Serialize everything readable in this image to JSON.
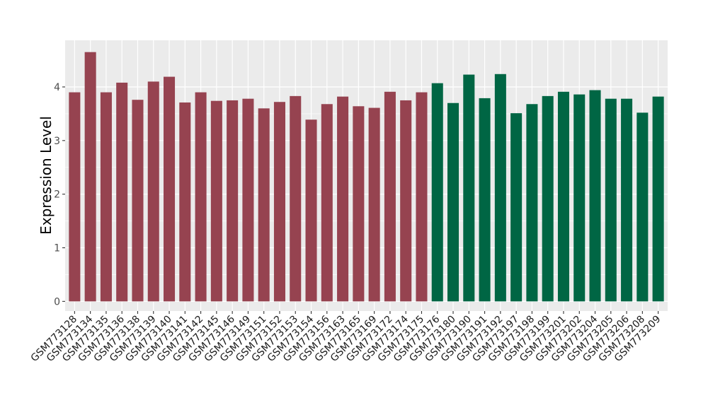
{
  "chart_data": {
    "type": "bar",
    "title": "",
    "xlabel": "",
    "ylabel": "Expression Level",
    "ylim": [
      -0.18,
      4.87
    ],
    "yticks": [
      0,
      1,
      2,
      3,
      4
    ],
    "grid": true,
    "legend": "none",
    "colors": {
      "group1": "#964350",
      "group2": "#006644",
      "panel": "#ebebeb",
      "grid": "#ffffff"
    },
    "categories": [
      "GSM773128",
      "GSM773134",
      "GSM773135",
      "GSM773136",
      "GSM773138",
      "GSM773139",
      "GSM773140",
      "GSM773141",
      "GSM773142",
      "GSM773145",
      "GSM773146",
      "GSM773149",
      "GSM773151",
      "GSM773152",
      "GSM773153",
      "GSM773154",
      "GSM773156",
      "GSM773163",
      "GSM773165",
      "GSM773169",
      "GSM773172",
      "GSM773174",
      "GSM773175",
      "GSM773176",
      "GSM773180",
      "GSM773190",
      "GSM773191",
      "GSM773192",
      "GSM773197",
      "GSM773198",
      "GSM773199",
      "GSM773201",
      "GSM773202",
      "GSM773204",
      "GSM773205",
      "GSM773206",
      "GSM773208",
      "GSM773209"
    ],
    "values": [
      3.9,
      4.65,
      3.9,
      4.08,
      3.76,
      4.1,
      4.19,
      3.71,
      3.9,
      3.74,
      3.75,
      3.78,
      3.6,
      3.72,
      3.83,
      3.39,
      3.68,
      3.82,
      3.64,
      3.61,
      3.91,
      3.75,
      3.9,
      4.07,
      3.7,
      4.23,
      3.79,
      4.24,
      3.51,
      3.68,
      3.83,
      3.91,
      3.86,
      3.94,
      3.78,
      3.78,
      3.52,
      3.82
    ],
    "groups": [
      1,
      1,
      1,
      1,
      1,
      1,
      1,
      1,
      1,
      1,
      1,
      1,
      1,
      1,
      1,
      1,
      1,
      1,
      1,
      1,
      1,
      1,
      1,
      2,
      2,
      2,
      2,
      2,
      2,
      2,
      2,
      2,
      2,
      2,
      2,
      2,
      2,
      2
    ]
  }
}
